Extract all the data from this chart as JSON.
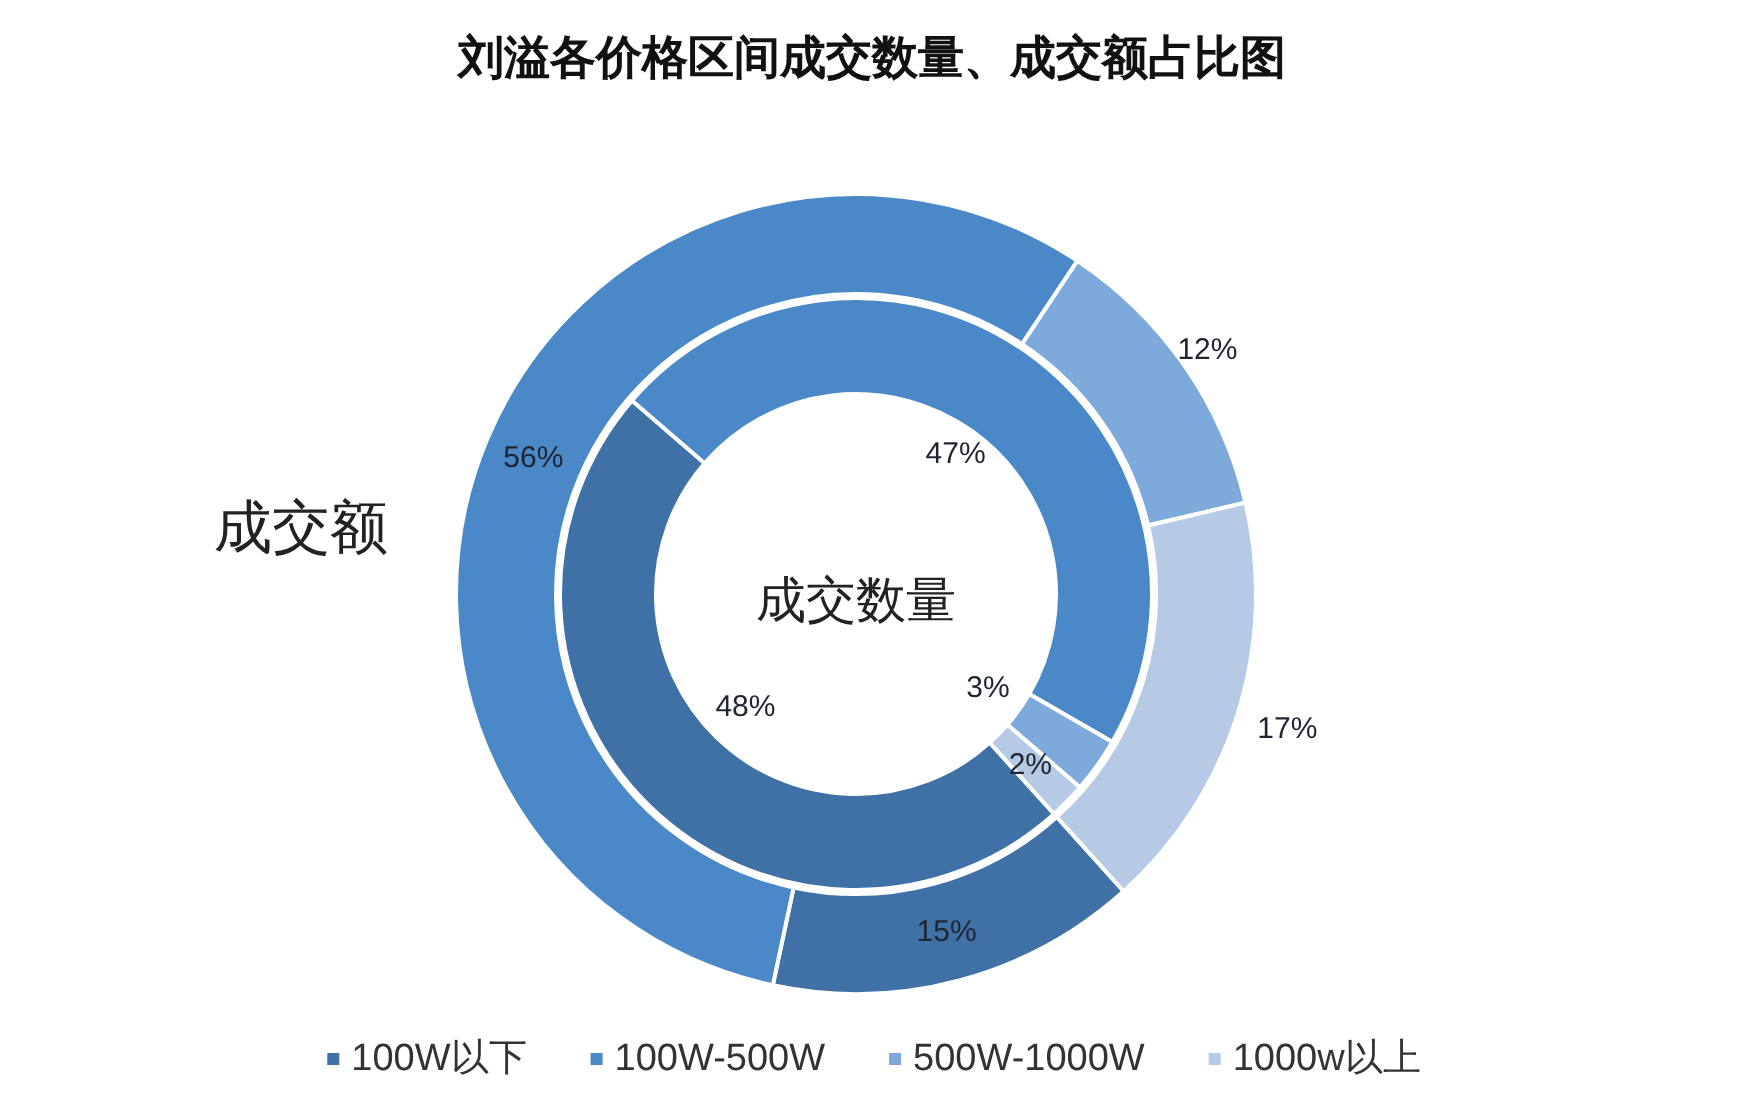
{
  "chart_data": {
    "type": "donut",
    "title": "刘溢各价格区间成交数量、成交额占比图",
    "categories": [
      "100W以下",
      "100W-500W",
      "500W-1000W",
      "1000w以上"
    ],
    "colors": [
      "#3f70a6",
      "#4a88c8",
      "#7eaadb",
      "#b6cae6"
    ],
    "series": [
      {
        "name": "成交额",
        "values": [
          15,
          56,
          12,
          17
        ],
        "value_labels": [
          "15%",
          "56%",
          "12%",
          "17%"
        ]
      },
      {
        "name": "成交数量",
        "values": [
          48,
          47,
          3,
          2
        ],
        "value_labels": [
          "48%",
          "47%",
          "3%",
          "2%"
        ]
      }
    ],
    "legend": "bottom"
  }
}
